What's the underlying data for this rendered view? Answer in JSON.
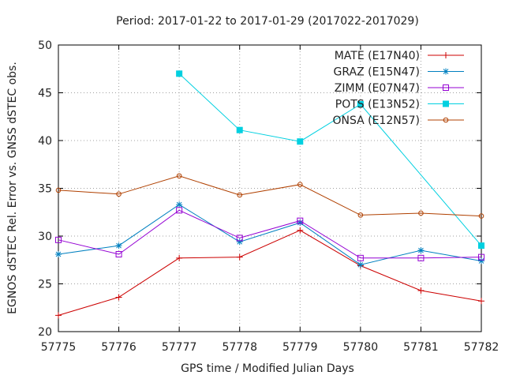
{
  "chart_data": {
    "type": "line",
    "title": "Period: 2017-01-22 to 2017-01-29 (2017022-2017029)",
    "xlabel": "GPS time / Modified Julian Days",
    "ylabel": "EGNOS dSTEC Rel. Error vs. GNSS dSTEC obs.",
    "xlim": [
      57775,
      57782
    ],
    "ylim": [
      20,
      50
    ],
    "x_ticks": [
      57775,
      57776,
      57777,
      57778,
      57779,
      57780,
      57781,
      57782
    ],
    "y_ticks": [
      20,
      25,
      30,
      35,
      40,
      45,
      50
    ],
    "grid": true,
    "legend_position": "top-right",
    "series": [
      {
        "name": "MATE (E17N40)",
        "color": "#cc0000",
        "marker": "plus",
        "x": [
          57775,
          57776,
          57777,
          57778,
          57779,
          57780,
          57781,
          57782
        ],
        "values": [
          21.7,
          23.6,
          27.7,
          27.8,
          30.6,
          26.9,
          24.3,
          23.2
        ]
      },
      {
        "name": "GRAZ (E15N47)",
        "color": "#0080c0",
        "marker": "star",
        "x": [
          57775,
          57776,
          57777,
          57778,
          57779,
          57780,
          57781,
          57782
        ],
        "values": [
          28.1,
          29.0,
          33.3,
          29.4,
          31.4,
          27.0,
          28.5,
          27.4
        ]
      },
      {
        "name": "ZIMM (E07N47)",
        "color": "#9400d3",
        "marker": "open-square",
        "x": [
          57775,
          57776,
          57777,
          57778,
          57779,
          57780,
          57781,
          57782
        ],
        "values": [
          29.6,
          28.1,
          32.7,
          29.8,
          31.6,
          27.7,
          27.7,
          27.8
        ]
      },
      {
        "name": "POTS (E13N52)",
        "color": "#00d0e0",
        "marker": "filled-square",
        "x": [
          57777,
          57778,
          57779,
          57780,
          57782
        ],
        "values": [
          47.0,
          41.1,
          39.9,
          43.8,
          29.0
        ]
      },
      {
        "name": "ONSA (E12N57)",
        "color": "#b04000",
        "marker": "open-circle",
        "x": [
          57775,
          57776,
          57777,
          57778,
          57779,
          57780,
          57781,
          57782
        ],
        "values": [
          34.8,
          34.4,
          36.3,
          34.3,
          35.4,
          32.2,
          32.4,
          32.1
        ]
      }
    ]
  }
}
